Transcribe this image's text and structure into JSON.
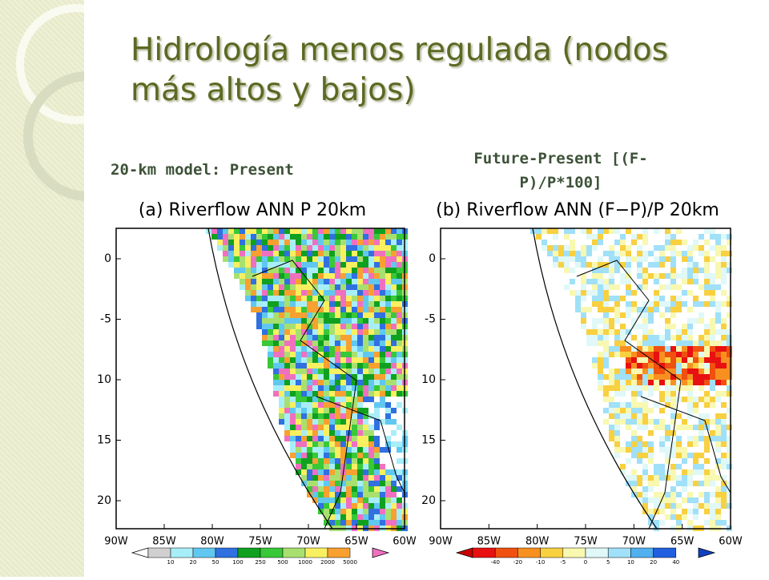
{
  "header": {
    "title": "Hidrología menos regulada (nodos más altos y bajos)"
  },
  "panels": [
    {
      "subtitle": "20-km model: Present",
      "title": "(a) Riverflow ANN P 20km",
      "lat_ticks": [
        "0",
        "-5",
        "10",
        "15",
        "20"
      ],
      "lon_ticks": [
        "90W",
        "85W",
        "80W",
        "75W",
        "70W",
        "65W",
        "60W"
      ],
      "colorbar": {
        "labels": [
          "10",
          "20",
          "50",
          "100",
          "250",
          "500",
          "1000",
          "2000",
          "5000"
        ],
        "colors": [
          "#ffffff",
          "#d0d0d0",
          "#a8eef8",
          "#60c8f0",
          "#3070e0",
          "#10a020",
          "#38c838",
          "#a8e070",
          "#f8f060",
          "#f8a030",
          "#f070c0"
        ]
      }
    },
    {
      "subtitle": "Future-Present [(F-P)/P*100]",
      "title": "(b) Riverflow ANN (F−P)/P 20km",
      "lat_ticks": [
        "0",
        "-5",
        "10",
        "15",
        "20"
      ],
      "lon_ticks": [
        "90W",
        "85W",
        "80W",
        "75W",
        "70W",
        "65W",
        "60W"
      ],
      "colorbar": {
        "labels": [
          "-40",
          "-20",
          "-10",
          "-5",
          "0",
          "5",
          "10",
          "20",
          "40"
        ],
        "colors": [
          "#c80000",
          "#e81010",
          "#f05010",
          "#f89020",
          "#f8d040",
          "#f8f8b0",
          "#e0f8f8",
          "#a0e0f8",
          "#50b0f0",
          "#2060e0",
          "#1040c0"
        ]
      }
    }
  ]
}
